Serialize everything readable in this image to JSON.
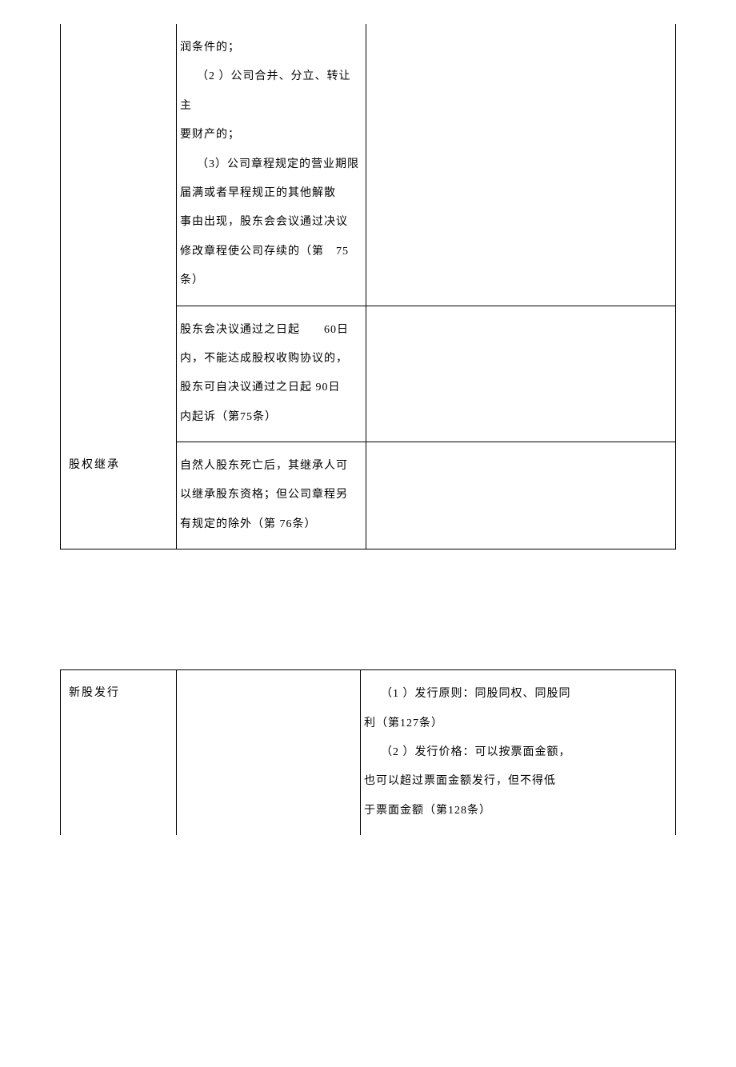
{
  "table1": {
    "row1": {
      "col1": "",
      "col2": {
        "p1": "润条件的；",
        "p2": "（2 ）公司合并、分立、转让主",
        "p3": "要财产的；",
        "p4": "（3）公司章程规定的营业期限",
        "p5": "届满或者早程规正的其他解散",
        "p6": "事由出现，股东会会议通过决议",
        "p7": "修改章程使公司存续的（第　75",
        "p8": "条）"
      },
      "col3": ""
    },
    "row2": {
      "col1": "",
      "col2": {
        "p1": "股东会决议通过之日起　　60日",
        "p2": " 内，不能达成股权收购协议的，",
        "p3": "股东可自决议通过之日起 90日",
        "p4": "内起诉（第75条）"
      },
      "col3": ""
    },
    "row3": {
      "col1": "股权继承",
      "col2": {
        "p1": " 自然人股东死亡后，其继承人可",
        "p2": "以继承股东资格；但公司章程另",
        "p3": "有规定的除外（第 76条）"
      },
      "col3": ""
    }
  },
  "table2": {
    "row1": {
      "col1": "新股发行",
      "col2": "",
      "col3": {
        "p1": "（1 ）发行原则：同股同权、同股同",
        "p2": "利（第127条）",
        "p3": "（2 ）发行价格：可以按票面金额，",
        "p4": "也可以超过票面金额发行，但不得低",
        "p5": "于票面金额（第128条）"
      }
    }
  }
}
